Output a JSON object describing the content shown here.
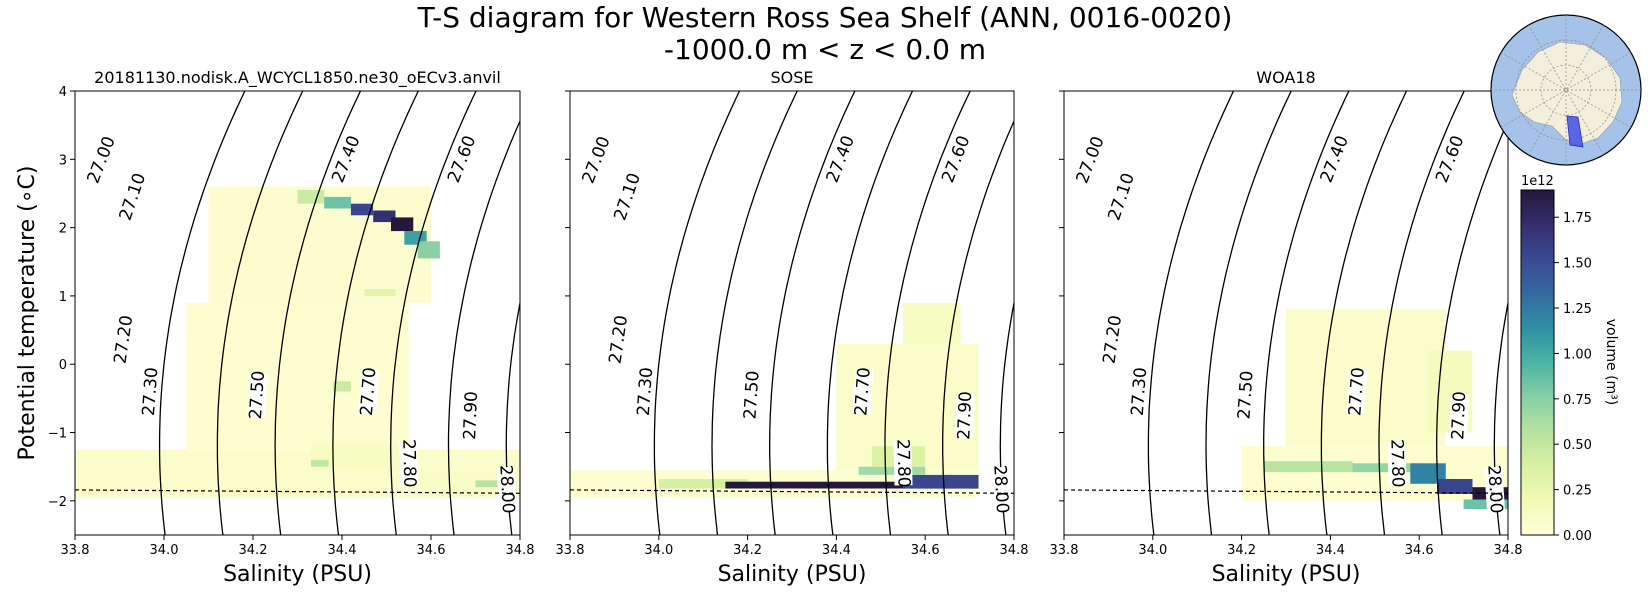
{
  "figure": {
    "title_line1": "T-S diagram for Western Ross Sea Shelf (ANN, 0016-0020)",
    "title_line2": "-1000.0 m < z < 0.0 m"
  },
  "chart_data": {
    "type": "heatmap",
    "shared": {
      "xlabel": "Salinity (PSU)",
      "ylabel": "Potential temperature (∘C)",
      "xlim": [
        33.8,
        34.8
      ],
      "ylim": [
        -2.5,
        4.0
      ],
      "xticks": [
        33.8,
        34.0,
        34.2,
        34.4,
        34.6,
        34.8
      ],
      "xtick_labels": [
        "33.8",
        "34.0",
        "34.2",
        "34.4",
        "34.6",
        "34.8"
      ],
      "yticks": [
        -2,
        -1,
        0,
        1,
        2,
        3,
        4
      ],
      "ytick_labels": [
        "−2",
        "−1",
        "0",
        "1",
        "2",
        "3",
        "4"
      ],
      "freezing_line": {
        "style": "dashed",
        "temp_at_xmin": -1.84,
        "temp_at_xmax": -1.89
      },
      "density_contours": [
        {
          "value": 27.0,
          "label": "27.00",
          "label_at": [
            33.86,
            2.99
          ]
        },
        {
          "value": 27.1,
          "label": "27.10",
          "label_at": [
            33.93,
            2.45
          ]
        },
        {
          "value": 27.2,
          "label": "27.20",
          "label_at": [
            33.91,
            0.36
          ]
        },
        {
          "value": 27.3,
          "label": "27.30",
          "label_at": [
            33.97,
            -0.4
          ]
        },
        {
          "value": 27.4,
          "label": "27.40",
          "label_at": [
            34.41,
            3.0
          ]
        },
        {
          "value": 27.5,
          "label": "27.50",
          "label_at": [
            34.21,
            -0.45
          ]
        },
        {
          "value": 27.6,
          "label": "27.60",
          "label_at": [
            34.67,
            3.0
          ]
        },
        {
          "value": 27.7,
          "label": "27.70",
          "label_at": [
            34.46,
            -0.4
          ]
        },
        {
          "value": 27.8,
          "label": "27.80",
          "label_at": [
            34.55,
            -1.45
          ]
        },
        {
          "value": 27.9,
          "label": "27.90",
          "label_at": [
            34.69,
            -0.75
          ]
        },
        {
          "value": 28.0,
          "label": "28.00",
          "label_at": [
            34.77,
            -1.83
          ]
        }
      ]
    },
    "panels": [
      {
        "title": "20181130.nodisk.A_WCYCL1850.ne30_oECv3.anvil",
        "bins": [
          [
            33.8,
            34.8,
            -1.95,
            -1.25,
            0.08
          ],
          [
            34.05,
            34.55,
            -1.3,
            0.9,
            0.05
          ],
          [
            34.1,
            34.6,
            0.9,
            2.6,
            0.06
          ],
          [
            34.33,
            34.53,
            -1.55,
            -1.15,
            0.12
          ],
          [
            34.55,
            34.78,
            -1.9,
            -1.6,
            0.1
          ],
          [
            34.3,
            34.36,
            2.35,
            2.55,
            0.45
          ],
          [
            34.36,
            34.42,
            2.28,
            2.45,
            0.85
          ],
          [
            34.42,
            34.47,
            2.18,
            2.35,
            1.55
          ],
          [
            34.47,
            34.52,
            2.08,
            2.25,
            1.7
          ],
          [
            34.51,
            34.56,
            1.95,
            2.15,
            1.9
          ],
          [
            34.54,
            34.59,
            1.75,
            1.95,
            1.05
          ],
          [
            34.57,
            34.62,
            1.55,
            1.8,
            0.75
          ],
          [
            34.45,
            34.52,
            1.0,
            1.1,
            0.3
          ],
          [
            34.33,
            34.37,
            -1.5,
            -1.4,
            0.5
          ],
          [
            34.38,
            34.42,
            -0.4,
            -0.25,
            0.45
          ],
          [
            34.7,
            34.76,
            -1.8,
            -1.7,
            0.55
          ]
        ]
      },
      {
        "title": "SOSE",
        "bins": [
          [
            33.8,
            34.72,
            -1.95,
            -1.55,
            0.05
          ],
          [
            34.4,
            34.72,
            -1.55,
            0.3,
            0.08
          ],
          [
            34.55,
            34.68,
            0.3,
            0.9,
            0.12
          ],
          [
            34.0,
            34.2,
            -1.82,
            -1.68,
            0.4
          ],
          [
            34.15,
            34.55,
            -1.82,
            -1.72,
            1.9
          ],
          [
            34.55,
            34.72,
            -1.82,
            -1.62,
            1.55
          ],
          [
            34.45,
            34.6,
            -1.62,
            -1.5,
            0.65
          ],
          [
            34.48,
            34.6,
            -1.5,
            -1.2,
            0.35
          ]
        ]
      },
      {
        "title": "WOA18",
        "bins": [
          [
            34.2,
            34.8,
            -2.0,
            -1.2,
            0.05
          ],
          [
            34.3,
            34.66,
            -1.2,
            0.8,
            0.08
          ],
          [
            34.62,
            34.72,
            -1.0,
            0.2,
            0.15
          ],
          [
            34.25,
            34.45,
            -1.58,
            -1.42,
            0.55
          ],
          [
            34.45,
            34.6,
            -1.58,
            -1.45,
            0.7
          ],
          [
            34.58,
            34.66,
            -1.75,
            -1.45,
            1.2
          ],
          [
            34.64,
            34.72,
            -1.9,
            -1.68,
            1.55
          ],
          [
            34.72,
            34.8,
            -2.0,
            -1.8,
            1.9
          ],
          [
            34.7,
            34.8,
            -2.12,
            -1.98,
            0.85
          ]
        ]
      }
    ],
    "colorbar": {
      "label": "volume (m³)",
      "offset_text": "1e12",
      "min": 0.0,
      "max": 1.9,
      "ticks": [
        0.0,
        0.25,
        0.5,
        0.75,
        1.0,
        1.25,
        1.5,
        1.75
      ],
      "tick_labels": [
        "0.00",
        "0.25",
        "0.50",
        "0.75",
        "1.00",
        "1.25",
        "1.50",
        "1.75"
      ]
    }
  },
  "colors": {
    "cmap": [
      "#ffffd9",
      "#f2fab5",
      "#d8f0a3",
      "#b7e2a1",
      "#86cfa5",
      "#4cb3a7",
      "#2f8fa4",
      "#3569a0",
      "#3b4993",
      "#342e6e",
      "#24193a"
    ],
    "map_ocean": "#a5c2e8",
    "map_land": "#f2efdc",
    "map_region": "#4a57e6"
  }
}
